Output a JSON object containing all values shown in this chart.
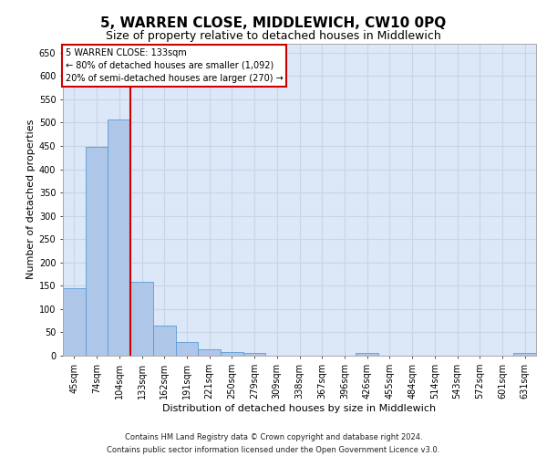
{
  "title": "5, WARREN CLOSE, MIDDLEWICH, CW10 0PQ",
  "subtitle": "Size of property relative to detached houses in Middlewich",
  "xlabel": "Distribution of detached houses by size in Middlewich",
  "ylabel": "Number of detached properties",
  "footer_line1": "Contains HM Land Registry data © Crown copyright and database right 2024.",
  "footer_line2": "Contains public sector information licensed under the Open Government Licence v3.0.",
  "annotation_line1": "5 WARREN CLOSE: 133sqm",
  "annotation_line2": "← 80% of detached houses are smaller (1,092)",
  "annotation_line3": "20% of semi-detached houses are larger (270) →",
  "bar_color": "#aec6e8",
  "bar_edge_color": "#5b9bd5",
  "vline_color": "#cc0000",
  "categories": [
    "45sqm",
    "74sqm",
    "104sqm",
    "133sqm",
    "162sqm",
    "191sqm",
    "221sqm",
    "250sqm",
    "279sqm",
    "309sqm",
    "338sqm",
    "367sqm",
    "396sqm",
    "426sqm",
    "455sqm",
    "484sqm",
    "514sqm",
    "543sqm",
    "572sqm",
    "601sqm",
    "631sqm"
  ],
  "values": [
    145,
    448,
    506,
    158,
    65,
    30,
    13,
    8,
    5,
    0,
    0,
    0,
    0,
    5,
    0,
    0,
    0,
    0,
    0,
    0,
    5
  ],
  "ylim": [
    0,
    670
  ],
  "yticks": [
    0,
    50,
    100,
    150,
    200,
    250,
    300,
    350,
    400,
    450,
    500,
    550,
    600,
    650
  ],
  "grid_color": "#c8d4e8",
  "bg_color": "#dce8f8",
  "title_fontsize": 11,
  "subtitle_fontsize": 9,
  "ylabel_fontsize": 8,
  "xlabel_fontsize": 8,
  "tick_fontsize": 7,
  "annotation_fontsize": 7,
  "footer_fontsize": 6
}
